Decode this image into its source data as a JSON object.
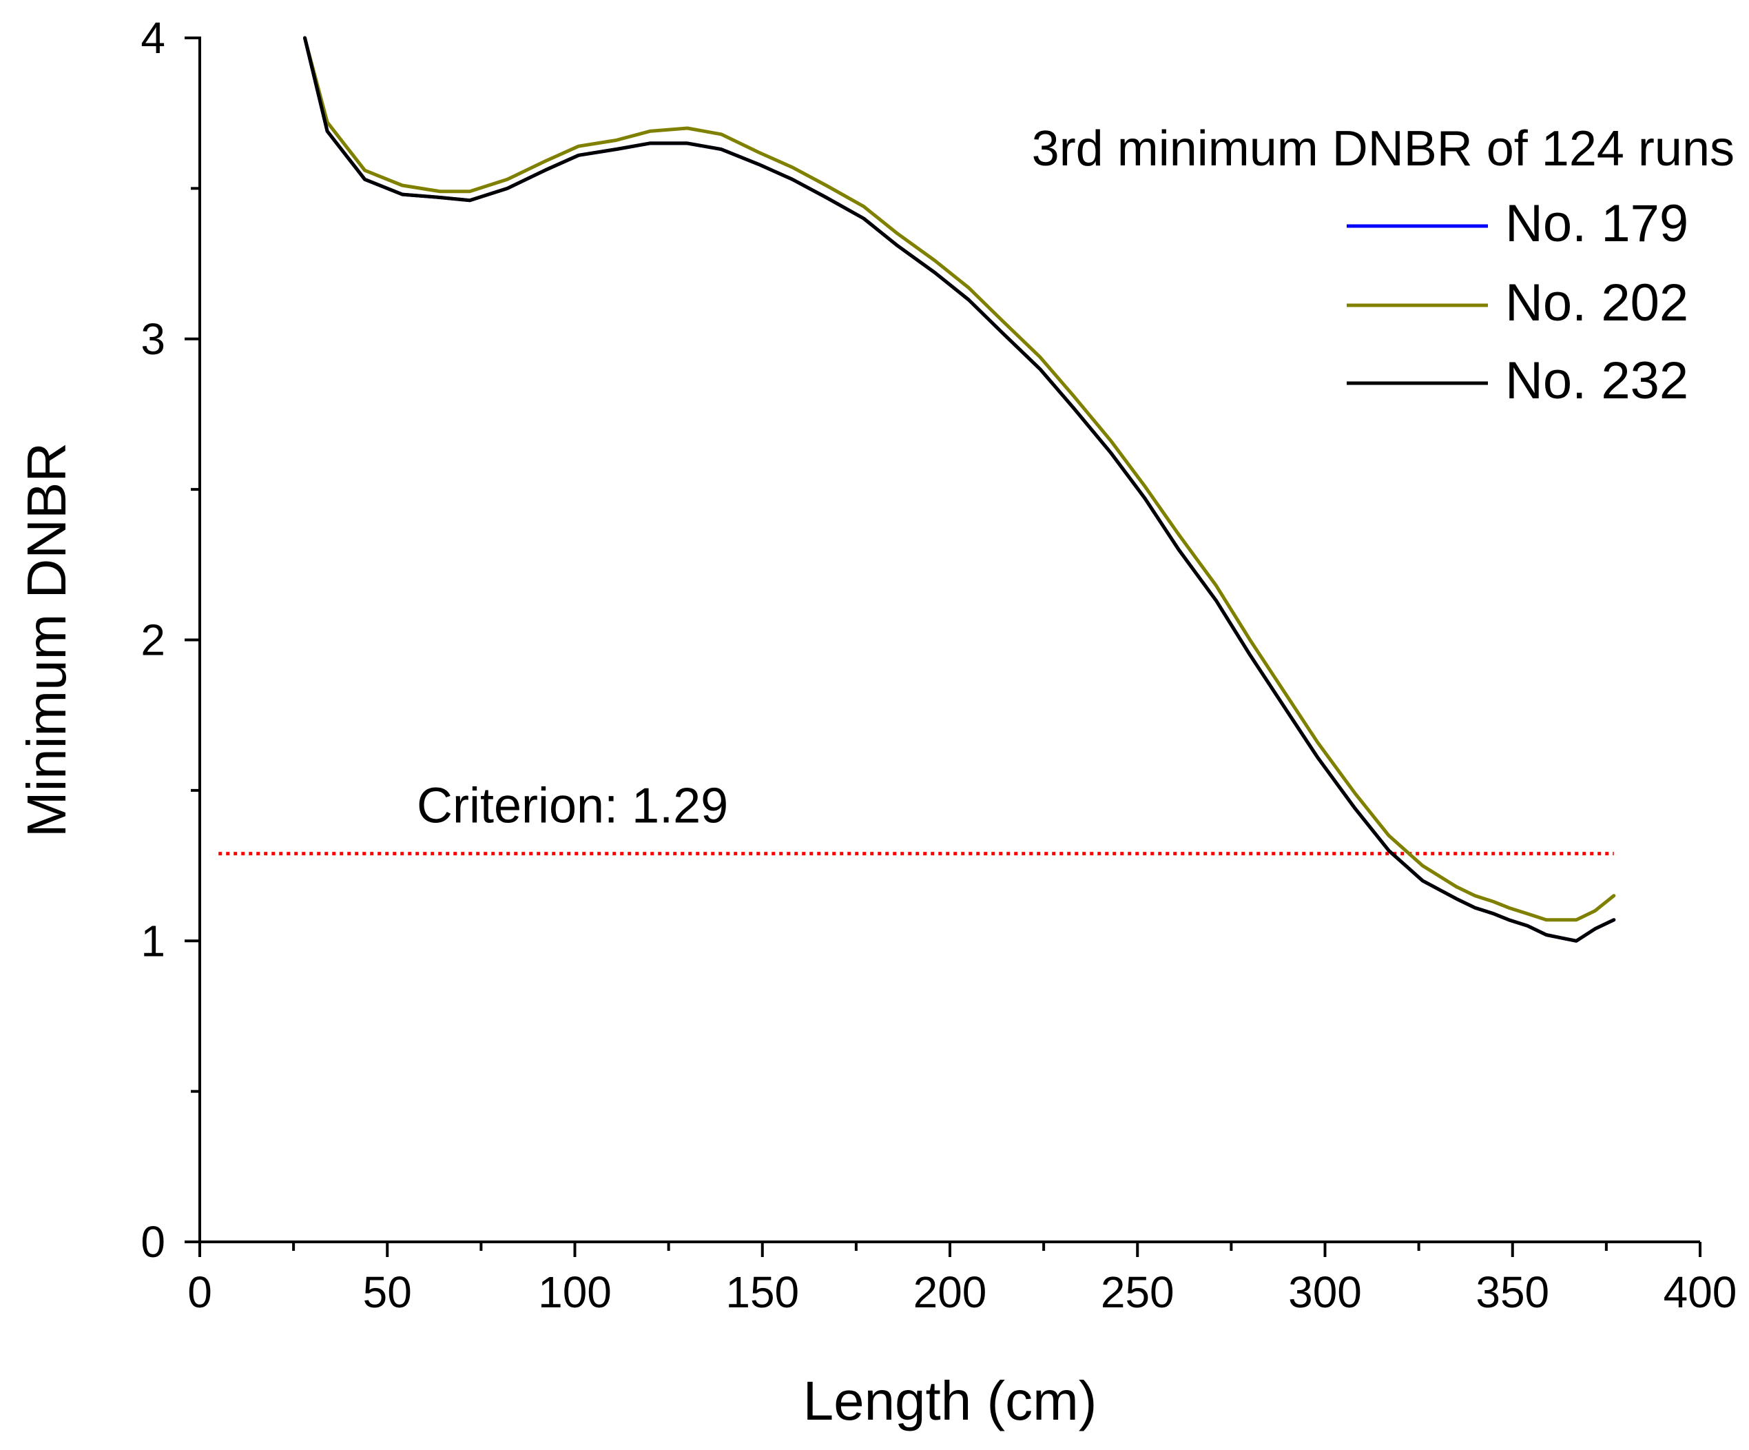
{
  "chart_data": {
    "type": "line",
    "title": "",
    "xlabel": "Length (cm)",
    "ylabel": "Minimum DNBR",
    "xlim": [
      0,
      400
    ],
    "ylim": [
      0,
      4
    ],
    "x_ticks": [
      0,
      50,
      100,
      150,
      200,
      250,
      300,
      350,
      400
    ],
    "x_tick_labels": [
      "0",
      "50",
      "100",
      "150",
      "200",
      "250",
      "300",
      "350",
      "400"
    ],
    "y_ticks": [
      0,
      1,
      2,
      3,
      4
    ],
    "y_tick_labels": [
      "0",
      "1",
      "2",
      "3",
      "4"
    ],
    "grid": false,
    "legend": {
      "title": "3rd minimum DNBR of 124 runs",
      "placement": "top-right"
    },
    "series": [
      {
        "name": "No. 179",
        "color": "#0000ff",
        "x": [
          28,
          34,
          44,
          54,
          64,
          72,
          82,
          92,
          101,
          111,
          120,
          130,
          139,
          149,
          158,
          167,
          177,
          186,
          196,
          205,
          214,
          224,
          233,
          243,
          252,
          261,
          271,
          280,
          289,
          298,
          308,
          317,
          326,
          335,
          340,
          345,
          349,
          354,
          359,
          363,
          367,
          372,
          377
        ],
        "y": [
          4.0,
          3.69,
          3.53,
          3.48,
          3.47,
          3.46,
          3.5,
          3.56,
          3.61,
          3.63,
          3.65,
          3.65,
          3.63,
          3.58,
          3.53,
          3.47,
          3.4,
          3.31,
          3.22,
          3.13,
          3.02,
          2.9,
          2.77,
          2.62,
          2.47,
          2.3,
          2.13,
          1.95,
          1.78,
          1.61,
          1.44,
          1.3,
          1.2,
          1.14,
          1.11,
          1.09,
          1.07,
          1.05,
          1.02,
          1.01,
          1.0,
          1.04,
          1.07
        ]
      },
      {
        "name": "No. 202",
        "color": "#808000",
        "x": [
          28,
          34,
          44,
          54,
          64,
          72,
          82,
          92,
          101,
          111,
          120,
          130,
          139,
          149,
          158,
          167,
          177,
          186,
          196,
          205,
          214,
          224,
          233,
          243,
          252,
          261,
          271,
          280,
          289,
          298,
          308,
          317,
          326,
          335,
          340,
          345,
          349,
          354,
          359,
          363,
          367,
          372,
          377
        ],
        "y": [
          4.0,
          3.72,
          3.56,
          3.51,
          3.49,
          3.49,
          3.53,
          3.59,
          3.64,
          3.66,
          3.69,
          3.7,
          3.68,
          3.62,
          3.57,
          3.51,
          3.44,
          3.35,
          3.26,
          3.17,
          3.06,
          2.94,
          2.81,
          2.66,
          2.51,
          2.35,
          2.18,
          2.0,
          1.83,
          1.66,
          1.49,
          1.35,
          1.25,
          1.18,
          1.15,
          1.13,
          1.11,
          1.09,
          1.07,
          1.07,
          1.07,
          1.1,
          1.15
        ]
      },
      {
        "name": "No. 232",
        "color": "#000000",
        "x": [
          28,
          34,
          44,
          54,
          64,
          72,
          82,
          92,
          101,
          111,
          120,
          130,
          139,
          149,
          158,
          167,
          177,
          186,
          196,
          205,
          214,
          224,
          233,
          243,
          252,
          261,
          271,
          280,
          289,
          298,
          308,
          317,
          326,
          335,
          340,
          345,
          349,
          354,
          359,
          363,
          367,
          372,
          377
        ],
        "y": [
          4.0,
          3.69,
          3.53,
          3.48,
          3.47,
          3.46,
          3.5,
          3.56,
          3.61,
          3.63,
          3.65,
          3.65,
          3.63,
          3.58,
          3.53,
          3.47,
          3.4,
          3.31,
          3.22,
          3.13,
          3.02,
          2.9,
          2.77,
          2.62,
          2.47,
          2.3,
          2.13,
          1.95,
          1.78,
          1.61,
          1.44,
          1.3,
          1.2,
          1.14,
          1.11,
          1.09,
          1.07,
          1.05,
          1.02,
          1.01,
          1.0,
          1.04,
          1.07
        ]
      }
    ],
    "reference_line": {
      "label": "Criterion: 1.29",
      "y": 1.29,
      "x_range": [
        5,
        377
      ],
      "color": "#ff0000",
      "style": "dotted"
    }
  }
}
